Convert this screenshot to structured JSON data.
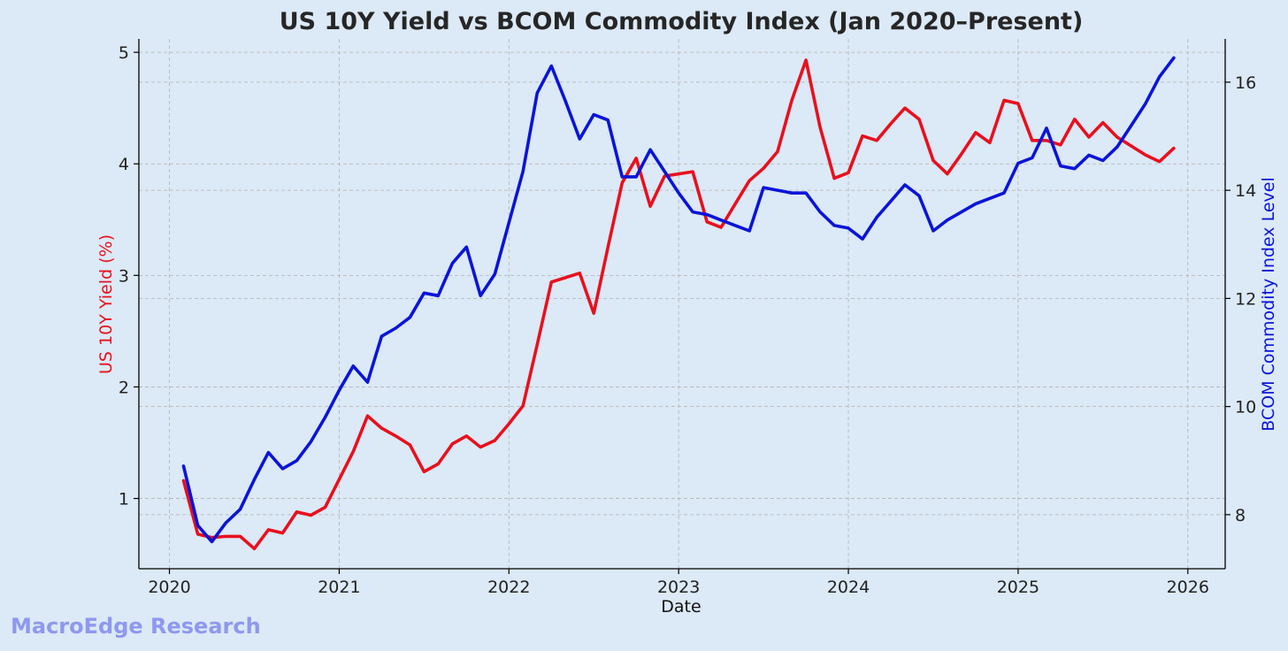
{
  "watermark": "MacroEdge Research",
  "chart_data": {
    "type": "line",
    "title": "US 10Y Yield vs BCOM Commodity Index (Jan 2020–Present)",
    "xlabel": "Date",
    "x_ticks": [
      2020,
      2021,
      2022,
      2023,
      2024,
      2025,
      2026
    ],
    "xlim": [
      2019.82,
      2026.22
    ],
    "grid": true,
    "y_left": {
      "label": "US 10Y Yield (%)",
      "ylim": [
        0.37,
        5.12
      ],
      "ticks": [
        1,
        2,
        3,
        4,
        5
      ],
      "color": "#e8101e"
    },
    "y_right": {
      "label": "BCOM Commodity Index Level",
      "ylim": [
        7.0,
        16.8
      ],
      "ticks": [
        8,
        10,
        12,
        14,
        16
      ],
      "color": "#0a14d8"
    },
    "series": [
      {
        "name": "US 10Y Yield (%)",
        "axis": "left",
        "color": "#e8101e",
        "x": [
          2020.083,
          2020.167,
          2020.25,
          2020.333,
          2020.417,
          2020.5,
          2020.583,
          2020.667,
          2020.75,
          2020.833,
          2020.917,
          2021.0,
          2021.083,
          2021.167,
          2021.25,
          2021.333,
          2021.417,
          2021.5,
          2021.583,
          2021.667,
          2021.75,
          2021.833,
          2021.917,
          2022.0,
          2022.083,
          2022.167,
          2022.25,
          2022.333,
          2022.417,
          2022.5,
          2022.583,
          2022.667,
          2022.75,
          2022.833,
          2022.917,
          2023.0,
          2023.083,
          2023.167,
          2023.25,
          2023.333,
          2023.417,
          2023.5,
          2023.583,
          2023.667,
          2023.75,
          2023.833,
          2023.917,
          2024.0,
          2024.083,
          2024.167,
          2024.25,
          2024.333,
          2024.417,
          2024.5,
          2024.583,
          2024.667,
          2024.75,
          2024.833,
          2024.917,
          2025.0,
          2025.083,
          2025.167,
          2025.25,
          2025.333,
          2025.417,
          2025.5,
          2025.583,
          2025.667,
          2025.75,
          2025.833,
          2025.917
        ],
        "values": [
          1.16,
          0.68,
          0.65,
          0.66,
          0.66,
          0.55,
          0.72,
          0.69,
          0.88,
          0.85,
          0.92,
          1.17,
          1.42,
          1.74,
          1.63,
          1.56,
          1.48,
          1.24,
          1.31,
          1.49,
          1.56,
          1.46,
          1.52,
          1.67,
          1.83,
          2.38,
          2.94,
          2.98,
          3.02,
          2.66,
          3.25,
          3.83,
          4.05,
          3.62,
          3.89,
          3.91,
          3.93,
          3.48,
          3.43,
          3.64,
          3.85,
          3.96,
          4.11,
          4.57,
          4.93,
          4.33,
          3.87,
          3.92,
          4.25,
          4.21,
          4.36,
          4.5,
          4.4,
          4.03,
          3.91,
          4.09,
          4.28,
          4.19,
          4.57,
          4.54,
          4.21,
          4.21,
          4.17,
          4.4,
          4.24,
          4.37,
          4.24,
          4.16,
          4.08,
          4.02,
          4.14
        ]
      },
      {
        "name": "BCOM Commodity Index Level",
        "axis": "right",
        "color": "#0a14d8",
        "x": [
          2020.083,
          2020.167,
          2020.25,
          2020.333,
          2020.417,
          2020.5,
          2020.583,
          2020.667,
          2020.75,
          2020.833,
          2020.917,
          2021.0,
          2021.083,
          2021.167,
          2021.25,
          2021.333,
          2021.417,
          2021.5,
          2021.583,
          2021.667,
          2021.75,
          2021.833,
          2021.917,
          2022.0,
          2022.083,
          2022.167,
          2022.25,
          2022.333,
          2022.417,
          2022.5,
          2022.583,
          2022.667,
          2022.75,
          2022.833,
          2022.917,
          2023.0,
          2023.083,
          2023.167,
          2023.25,
          2023.333,
          2023.417,
          2023.5,
          2023.583,
          2023.667,
          2023.75,
          2023.833,
          2023.917,
          2024.0,
          2024.083,
          2024.167,
          2024.25,
          2024.333,
          2024.417,
          2024.5,
          2024.583,
          2024.667,
          2024.75,
          2024.833,
          2024.917,
          2025.0,
          2025.083,
          2025.167,
          2025.25,
          2025.333,
          2025.417,
          2025.5,
          2025.583,
          2025.667,
          2025.75,
          2025.833,
          2025.917
        ],
        "values": [
          8.9,
          7.8,
          7.5,
          7.85,
          8.1,
          8.65,
          9.15,
          8.85,
          9.0,
          9.35,
          9.8,
          10.3,
          10.75,
          10.45,
          11.3,
          11.45,
          11.65,
          12.1,
          12.05,
          12.65,
          12.95,
          12.05,
          12.45,
          13.4,
          14.35,
          15.8,
          16.3,
          15.65,
          14.95,
          15.4,
          15.3,
          14.25,
          14.25,
          14.75,
          14.35,
          13.95,
          13.6,
          13.55,
          13.45,
          13.35,
          13.25,
          14.05,
          14.0,
          13.95,
          13.95,
          13.6,
          13.35,
          13.3,
          13.1,
          13.5,
          13.8,
          14.1,
          13.9,
          13.25,
          13.45,
          13.6,
          13.75,
          13.85,
          13.95,
          14.5,
          14.6,
          15.15,
          14.45,
          14.4,
          14.65,
          14.55,
          14.8,
          15.2,
          15.6,
          16.1,
          16.45
        ]
      }
    ]
  }
}
